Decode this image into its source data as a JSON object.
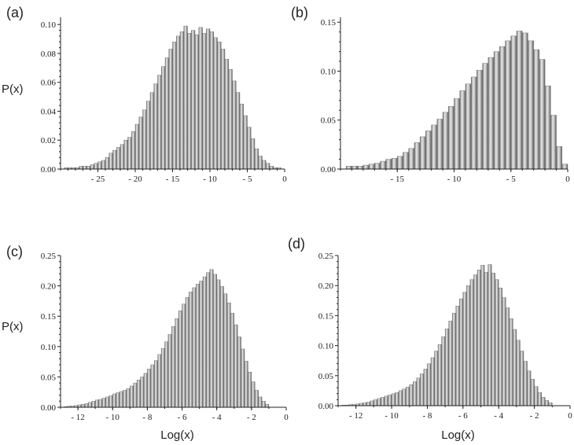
{
  "chart_data": [
    {
      "type": "bar",
      "panel_label": "(a)",
      "ylabel": "P(x)",
      "xlabel": "",
      "xlim": [
        -30,
        0
      ],
      "ylim": [
        0,
        0.105
      ],
      "xticks": [
        -25,
        -20,
        -15,
        -10,
        -5,
        0
      ],
      "xtick_labels": [
        "- 25",
        "- 20",
        "- 15",
        "- 10",
        "- 5",
        "0"
      ],
      "yticks": [
        0,
        0.02,
        0.04,
        0.06,
        0.08,
        0.1
      ],
      "ytick_labels": [
        "0.00",
        "0.02",
        "0.04",
        "0.06",
        "0.08",
        "0.10"
      ],
      "bin_start": -29.5,
      "bin_width": 0.5,
      "values": [
        0.001,
        0.001,
        0.001,
        0.001,
        0.002,
        0.002,
        0.002,
        0.003,
        0.004,
        0.005,
        0.006,
        0.008,
        0.011,
        0.013,
        0.015,
        0.017,
        0.02,
        0.022,
        0.026,
        0.031,
        0.036,
        0.041,
        0.047,
        0.053,
        0.059,
        0.065,
        0.071,
        0.077,
        0.083,
        0.088,
        0.092,
        0.095,
        0.099,
        0.094,
        0.096,
        0.093,
        0.098,
        0.094,
        0.097,
        0.095,
        0.091,
        0.088,
        0.083,
        0.076,
        0.069,
        0.061,
        0.053,
        0.045,
        0.037,
        0.029,
        0.021,
        0.014,
        0.009,
        0.006,
        0.004,
        0.002,
        0.001,
        0.001,
        0.0
      ]
    },
    {
      "type": "bar",
      "panel_label": "(b)",
      "ylabel": "",
      "xlabel": "",
      "xlim": [
        -20,
        0
      ],
      "ylim": [
        0,
        0.155
      ],
      "xticks": [
        -15,
        -10,
        -5,
        0
      ],
      "xtick_labels": [
        "- 15",
        "- 10",
        "- 5",
        "0"
      ],
      "yticks": [
        0,
        0.05,
        0.1,
        0.15
      ],
      "ytick_labels": [
        "0.00",
        "0.05",
        "0.10",
        "0.15"
      ],
      "bin_start": -19.5,
      "bin_width": 0.5,
      "values": [
        0.003,
        0.003,
        0.003,
        0.004,
        0.005,
        0.006,
        0.008,
        0.01,
        0.011,
        0.013,
        0.017,
        0.021,
        0.027,
        0.033,
        0.039,
        0.045,
        0.051,
        0.058,
        0.064,
        0.072,
        0.08,
        0.087,
        0.094,
        0.101,
        0.108,
        0.114,
        0.12,
        0.125,
        0.131,
        0.136,
        0.141,
        0.139,
        0.131,
        0.122,
        0.112,
        0.085,
        0.055,
        0.023,
        0.005
      ]
    },
    {
      "type": "bar",
      "panel_label": "(c)",
      "ylabel": "P(x)",
      "xlabel": "Log(x)",
      "xlim": [
        -13,
        0
      ],
      "ylim": [
        0,
        0.25
      ],
      "xticks": [
        -12,
        -10,
        -8,
        -6,
        -4,
        -2,
        0
      ],
      "xtick_labels": [
        "- 12",
        "- 10",
        "- 8",
        "- 6",
        "- 4",
        "- 2",
        "0"
      ],
      "yticks": [
        0,
        0.05,
        0.1,
        0.15,
        0.2,
        0.25
      ],
      "ytick_labels": [
        "0.00",
        "0.05",
        "0.10",
        "0.15",
        "0.20",
        "0.25"
      ],
      "bin_start": -12.8,
      "bin_width": 0.2,
      "values": [
        0.001,
        0.002,
        0.002,
        0.003,
        0.004,
        0.005,
        0.006,
        0.008,
        0.01,
        0.012,
        0.013,
        0.015,
        0.017,
        0.019,
        0.022,
        0.024,
        0.026,
        0.028,
        0.031,
        0.035,
        0.04,
        0.045,
        0.05,
        0.056,
        0.063,
        0.07,
        0.077,
        0.087,
        0.097,
        0.108,
        0.12,
        0.133,
        0.146,
        0.159,
        0.17,
        0.181,
        0.19,
        0.197,
        0.203,
        0.208,
        0.215,
        0.222,
        0.227,
        0.219,
        0.21,
        0.199,
        0.187,
        0.172,
        0.155,
        0.136,
        0.116,
        0.096,
        0.076,
        0.058,
        0.042,
        0.028,
        0.017,
        0.01,
        0.005
      ]
    },
    {
      "type": "bar",
      "panel_label": "(d)",
      "ylabel": "",
      "xlabel": "Log(x)",
      "xlim": [
        -13,
        0
      ],
      "ylim": [
        0,
        0.25
      ],
      "xticks": [
        -12,
        -10,
        -8,
        -6,
        -4,
        -2,
        0
      ],
      "xtick_labels": [
        "- 12",
        "- 10",
        "- 8",
        "- 6",
        "- 4",
        "- 2",
        "0"
      ],
      "yticks": [
        0,
        0.05,
        0.1,
        0.15,
        0.2,
        0.25
      ],
      "ytick_labels": [
        "0.00",
        "0.05",
        "0.10",
        "0.15",
        "0.20",
        "0.25"
      ],
      "bin_start": -12.8,
      "bin_width": 0.2,
      "values": [
        0.001,
        0.001,
        0.002,
        0.002,
        0.003,
        0.004,
        0.005,
        0.006,
        0.008,
        0.01,
        0.012,
        0.014,
        0.016,
        0.018,
        0.02,
        0.022,
        0.025,
        0.028,
        0.031,
        0.035,
        0.04,
        0.046,
        0.053,
        0.061,
        0.07,
        0.08,
        0.091,
        0.102,
        0.115,
        0.128,
        0.141,
        0.154,
        0.166,
        0.178,
        0.189,
        0.2,
        0.21,
        0.218,
        0.226,
        0.234,
        0.222,
        0.235,
        0.221,
        0.21,
        0.196,
        0.18,
        0.163,
        0.145,
        0.127,
        0.109,
        0.091,
        0.074,
        0.058,
        0.044,
        0.032,
        0.022,
        0.014,
        0.009,
        0.005
      ]
    }
  ]
}
